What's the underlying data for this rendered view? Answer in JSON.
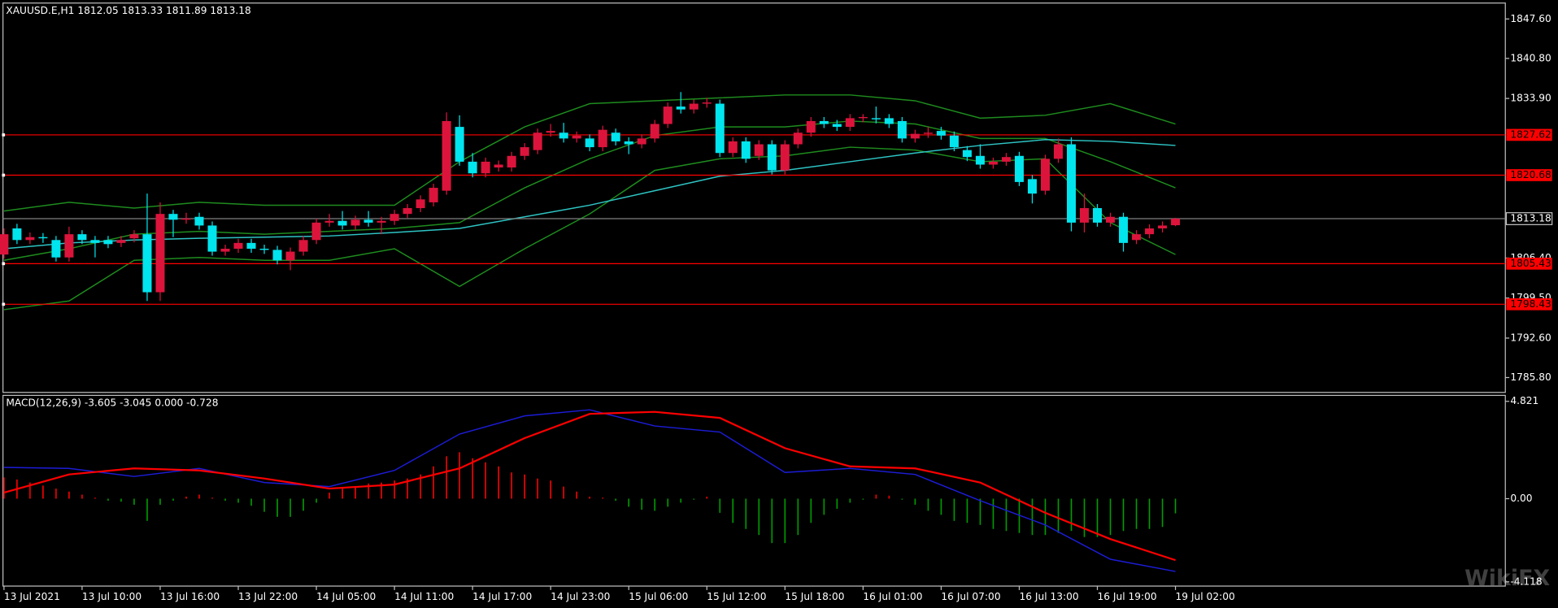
{
  "chart_data": [
    {
      "type": "candlestick",
      "title": "XAUUSD.E,H1  1812.05 1813.33 1811.89 1813.18",
      "categories": [
        "13 Jul 2021",
        null,
        null,
        null,
        null,
        null,
        "13 Jul 10:00",
        null,
        null,
        null,
        null,
        null,
        "13 Jul 16:00",
        null,
        null,
        null,
        null,
        null,
        "13 Jul 22:00",
        null,
        null,
        null,
        null,
        null,
        "14 Jul 05:00",
        null,
        null,
        null,
        null,
        null,
        "14 Jul 11:00",
        null,
        null,
        null,
        null,
        null,
        "14 Jul 17:00",
        null,
        null,
        null,
        null,
        null,
        "14 Jul 23:00",
        null,
        null,
        null,
        null,
        null,
        "15 Jul 06:00",
        null,
        null,
        null,
        null,
        null,
        "15 Jul 12:00",
        null,
        null,
        null,
        null,
        null,
        "15 Jul 18:00",
        null,
        null,
        null,
        null,
        null,
        "16 Jul 01:00",
        null,
        null,
        null,
        null,
        null,
        "16 Jul 07:00",
        null,
        null,
        null,
        null,
        null,
        "16 Jul 13:00",
        null,
        null,
        null,
        null,
        null,
        "16 Jul 19:00",
        null,
        null,
        null,
        null,
        null,
        "19 Jul 02:00"
      ],
      "open": [
        1807,
        1811.5,
        1809.5,
        1810,
        1809.5,
        1806.5,
        1810.5,
        1809.5,
        1809.5,
        1809,
        1809.8,
        1810.5,
        1800.5,
        1814,
        1813,
        1813.5,
        1812,
        1807.5,
        1808,
        1809,
        1808,
        1807.8,
        1806,
        1807.5,
        1809.5,
        1812.5,
        1812.8,
        1812,
        1813,
        1812.5,
        1812.8,
        1814,
        1815,
        1816,
        1818,
        1829,
        1823,
        1821,
        1822,
        1822,
        1824,
        1825,
        1828,
        1828,
        1827,
        1827,
        1825.5,
        1828,
        1826.5,
        1826,
        1827,
        1829.5,
        1832.5,
        1832,
        1833,
        1833,
        1824.5,
        1826.5,
        1824,
        1826,
        1821.5,
        1826,
        1828,
        1830,
        1829.5,
        1829,
        1830.5,
        1830.5,
        1830.5,
        1830,
        1827,
        1827.8,
        1828.3,
        1827.5,
        1825,
        1824,
        1822.5,
        1823,
        1824,
        1820,
        1818,
        1823.5,
        1826,
        1812.5,
        1815,
        1812.5,
        1813.5,
        1809.5,
        1810.5,
        1811.5,
        1812.05
      ],
      "high": [
        1811.5,
        1812.3,
        1810.8,
        1810.7,
        1810.2,
        1811.8,
        1811.2,
        1810.2,
        1810.2,
        1810.2,
        1811.2,
        1817.5,
        1816,
        1814.7,
        1814.2,
        1814.2,
        1812.7,
        1808.7,
        1809.7,
        1809.7,
        1808.7,
        1808.5,
        1808.2,
        1810.2,
        1813.2,
        1814,
        1814.5,
        1813.7,
        1814.5,
        1813.5,
        1814.7,
        1815.7,
        1817.2,
        1819.2,
        1831.5,
        1831,
        1824.5,
        1823.7,
        1823.2,
        1824.7,
        1826.2,
        1828.7,
        1829.5,
        1829.7,
        1828.2,
        1827.7,
        1829.2,
        1828.7,
        1827.2,
        1827.7,
        1830.2,
        1833.2,
        1835,
        1833.7,
        1834,
        1833.7,
        1827.2,
        1827.2,
        1826.7,
        1826.7,
        1826.7,
        1828.7,
        1830.7,
        1830.7,
        1830.2,
        1831.2,
        1831.2,
        1832.5,
        1831.2,
        1830.7,
        1828.5,
        1829,
        1829,
        1828.2,
        1825.7,
        1826,
        1823.7,
        1824.5,
        1824.7,
        1820.7,
        1824.2,
        1827,
        1827.2,
        1817.5,
        1815.7,
        1814.2,
        1814.2,
        1811.2,
        1812.2,
        1812.7,
        1813.33
      ],
      "low": [
        1806.3,
        1808.8,
        1808.8,
        1809,
        1805.8,
        1805.8,
        1808.8,
        1806.5,
        1808.1,
        1808.3,
        1809.1,
        1799,
        1799,
        1810,
        1812.3,
        1811.3,
        1806.8,
        1806.8,
        1807.3,
        1807.3,
        1807.1,
        1805.3,
        1804.3,
        1806.8,
        1808.8,
        1811.8,
        1811.3,
        1811.3,
        1811.8,
        1810.5,
        1812.1,
        1813.3,
        1814.3,
        1815.3,
        1817.3,
        1822.3,
        1820.3,
        1820.3,
        1821.3,
        1821.3,
        1823.3,
        1824.3,
        1827.3,
        1826.3,
        1826.3,
        1824.8,
        1824.8,
        1825.8,
        1824.3,
        1825.3,
        1826.3,
        1828.8,
        1831.3,
        1831.3,
        1832.3,
        1823.8,
        1823.8,
        1822.8,
        1823.3,
        1820.8,
        1820.8,
        1825.3,
        1827.3,
        1828.8,
        1828.3,
        1828.3,
        1829.8,
        1829.6,
        1828.8,
        1826.3,
        1826.3,
        1827.1,
        1826.8,
        1824.8,
        1823.1,
        1821.8,
        1821.8,
        1822.3,
        1818.8,
        1815.8,
        1817.3,
        1822.8,
        1811,
        1810.8,
        1811.8,
        1811.8,
        1807.5,
        1808.8,
        1809.8,
        1810.8,
        1811.89
      ],
      "close": [
        1810.5,
        1809.5,
        1810,
        1809.8,
        1806.5,
        1810.5,
        1809.5,
        1809,
        1808.8,
        1809.5,
        1810.5,
        1800.5,
        1814,
        1813,
        1813.2,
        1812,
        1807.5,
        1808,
        1809,
        1808,
        1807.8,
        1806,
        1807.5,
        1809.5,
        1812.5,
        1812.8,
        1812,
        1813,
        1812.5,
        1812.8,
        1814,
        1815,
        1816.5,
        1818.5,
        1830,
        1823,
        1821,
        1823,
        1822.5,
        1824,
        1825.5,
        1828,
        1828.3,
        1827,
        1827.5,
        1825.5,
        1828.5,
        1826.5,
        1826,
        1827,
        1829.5,
        1832.5,
        1832,
        1833,
        1833.2,
        1824.5,
        1826.5,
        1823.5,
        1826,
        1821.5,
        1826,
        1828,
        1830,
        1829.5,
        1829,
        1830.5,
        1830.7,
        1830.3,
        1829.5,
        1827,
        1827.8,
        1828,
        1827.5,
        1825.5,
        1823.8,
        1822.5,
        1823,
        1823.8,
        1819.5,
        1817.5,
        1823.5,
        1826,
        1812.5,
        1815,
        1812.5,
        1813.5,
        1809,
        1810.5,
        1811.5,
        1812,
        1813.18
      ],
      "up_color": "#dc143c",
      "down_color": "#00e5ee",
      "ylim": [
        1783.24,
        1850.34
      ],
      "yticks": [
        {
          "value": 1847.6,
          "label": "1847.60"
        },
        {
          "value": 1840.8,
          "label": "1840.80"
        },
        {
          "value": 1833.9,
          "label": "1833.90"
        },
        {
          "value": 1806.4,
          "label": "1806.40"
        },
        {
          "value": 1799.5,
          "label": "1799.50"
        },
        {
          "value": 1792.6,
          "label": "1792.60"
        },
        {
          "value": 1785.8,
          "label": "1785.80"
        }
      ],
      "series": [
        {
          "color": "#1e8c1e",
          "x": [
            0,
            5,
            10,
            15,
            20,
            25,
            30,
            35,
            40,
            45,
            50,
            55,
            60,
            65,
            70,
            75,
            80,
            85,
            90
          ],
          "values": [
            1814.5,
            1816,
            1815,
            1816,
            1815.5,
            1815.5,
            1815.5,
            1823,
            1829,
            1833,
            1833.5,
            1834,
            1834.5,
            1834.5,
            1833.5,
            1830.5,
            1831,
            1833,
            1829.5
          ]
        },
        {
          "color": "#1e8c1e",
          "x": [
            0,
            5,
            10,
            15,
            20,
            25,
            30,
            35,
            40,
            45,
            50,
            55,
            60,
            65,
            70,
            75,
            80,
            85,
            90
          ],
          "values": [
            1806,
            1808,
            1810.5,
            1811,
            1810.5,
            1811,
            1811.5,
            1812.5,
            1818.5,
            1823.5,
            1827.5,
            1829,
            1829,
            1830,
            1829.5,
            1827,
            1827,
            1823,
            1818.5
          ]
        },
        {
          "color": "#1e8c1e",
          "x": [
            0,
            5,
            10,
            15,
            20,
            25,
            30,
            35,
            40,
            45,
            50,
            55,
            60,
            65,
            70,
            75,
            80,
            85,
            90
          ],
          "values": [
            1797.5,
            1799,
            1806,
            1806.5,
            1806,
            1806,
            1808,
            1801.5,
            1808,
            1814,
            1821.5,
            1823.5,
            1824,
            1825.5,
            1825,
            1823,
            1823.5,
            1812.5,
            1807
          ]
        },
        {
          "color": "#2ec4c4",
          "x": [
            0,
            5,
            10,
            15,
            20,
            25,
            30,
            35,
            40,
            45,
            50,
            55,
            60,
            65,
            70,
            75,
            80,
            85,
            90
          ],
          "values": [
            1808,
            1809,
            1809.5,
            1809.8,
            1810,
            1810.2,
            1810.8,
            1811.5,
            1813.5,
            1815.5,
            1818,
            1820.5,
            1821.5,
            1823,
            1824.5,
            1825.8,
            1826.8,
            1826.5,
            1825.8
          ]
        }
      ],
      "levels": [
        1827.62,
        1820.68,
        1805.43,
        1798.43
      ],
      "level_color": "#ff0000",
      "last_price": 1813.18,
      "watermark": "WikiFX"
    },
    {
      "type": "macd",
      "title": "MACD(12,26,9) -3.605 -3.045 0.000 -0.728",
      "histogram": [
        1.05,
        0.95,
        0.8,
        0.65,
        0.5,
        0.35,
        0.2,
        0.05,
        -0.1,
        -0.15,
        -0.3,
        -1.1,
        -0.3,
        -0.1,
        0.1,
        0.2,
        0.05,
        -0.1,
        -0.2,
        -0.35,
        -0.65,
        -0.9,
        -0.9,
        -0.6,
        -0.2,
        0.3,
        0.5,
        0.6,
        0.75,
        0.8,
        0.9,
        1.0,
        1.2,
        1.6,
        2.1,
        2.3,
        2.0,
        1.8,
        1.6,
        1.3,
        1.2,
        1.0,
        0.9,
        0.6,
        0.35,
        0.1,
        0.05,
        -0.1,
        -0.4,
        -0.55,
        -0.6,
        -0.4,
        -0.2,
        -0.05,
        0.1,
        -0.7,
        -1.2,
        -1.5,
        -1.8,
        -2.2,
        -2.2,
        -1.8,
        -1.2,
        -0.8,
        -0.5,
        -0.2,
        -0.05,
        0.2,
        0.15,
        -0.05,
        -0.3,
        -0.6,
        -0.8,
        -1.1,
        -1.2,
        -1.3,
        -1.5,
        -1.6,
        -1.7,
        -1.8,
        -1.8,
        -1.7,
        -1.6,
        -1.9,
        -1.9,
        -1.8,
        -1.6,
        -1.5,
        -1.5,
        -1.4,
        -0.728
      ],
      "up_color": "#ff0000",
      "down_color": "#00a000",
      "series": [
        {
          "color": "#1c1cd8",
          "x": [
            0,
            5,
            10,
            15,
            20,
            25,
            30,
            35,
            40,
            45,
            50,
            55,
            60,
            65,
            70,
            75,
            80,
            85,
            90
          ],
          "values": [
            1.55,
            1.5,
            1.1,
            1.5,
            0.8,
            0.6,
            1.4,
            3.2,
            4.1,
            4.4,
            3.6,
            3.3,
            1.3,
            1.5,
            1.2,
            -0.1,
            -1.3,
            -3.0,
            -3.605
          ]
        },
        {
          "color": "#ff0000",
          "x": [
            0,
            5,
            10,
            15,
            20,
            25,
            30,
            35,
            40,
            45,
            50,
            55,
            60,
            65,
            70,
            75,
            80,
            85,
            90
          ],
          "values": [
            0.3,
            1.2,
            1.5,
            1.4,
            1.0,
            0.5,
            0.7,
            1.5,
            3.0,
            4.2,
            4.3,
            4.0,
            2.5,
            1.6,
            1.5,
            0.8,
            -0.7,
            -2.0,
            -3.045
          ]
        }
      ],
      "ylim": [
        -4.329,
        5.116
      ],
      "yticks": [
        4.821,
        {
          "value": 0,
          "label": "0.00"
        },
        -4.118
      ]
    }
  ]
}
